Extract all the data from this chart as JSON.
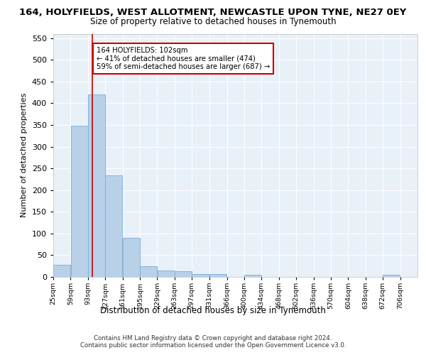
{
  "title": "164, HOLYFIELDS, WEST ALLOTMENT, NEWCASTLE UPON TYNE, NE27 0EY",
  "subtitle": "Size of property relative to detached houses in Tynemouth",
  "xlabel": "Distribution of detached houses by size in Tynemouth",
  "ylabel": "Number of detached properties",
  "bar_color": "#b8d0e8",
  "bar_edge_color": "#7aadd4",
  "background_color": "#e8f0f8",
  "annotation_box_color": "#cc0000",
  "annotation_line_color": "#cc0000",
  "property_line_x": 102,
  "annotation_text": "164 HOLYFIELDS: 102sqm\n← 41% of detached houses are smaller (474)\n59% of semi-detached houses are larger (687) →",
  "footer1": "Contains HM Land Registry data © Crown copyright and database right 2024.",
  "footer2": "Contains public sector information licensed under the Open Government Licence v3.0.",
  "bin_edges": [
    25,
    59,
    93,
    127,
    161,
    195,
    229,
    263,
    297,
    331,
    366,
    400,
    434,
    468,
    502,
    536,
    570,
    604,
    638,
    672,
    706
  ],
  "bin_labels": [
    "25sqm",
    "59sqm",
    "93sqm",
    "127sqm",
    "161sqm",
    "195sqm",
    "229sqm",
    "263sqm",
    "297sqm",
    "331sqm",
    "366sqm",
    "400sqm",
    "434sqm",
    "468sqm",
    "502sqm",
    "536sqm",
    "570sqm",
    "604sqm",
    "638sqm",
    "672sqm",
    "706sqm"
  ],
  "counts": [
    28,
    348,
    420,
    233,
    90,
    24,
    14,
    13,
    7,
    6,
    0,
    5,
    0,
    0,
    0,
    0,
    0,
    0,
    0,
    5
  ],
  "ylim": [
    0,
    560
  ],
  "yticks": [
    0,
    50,
    100,
    150,
    200,
    250,
    300,
    350,
    400,
    450,
    500,
    550
  ]
}
